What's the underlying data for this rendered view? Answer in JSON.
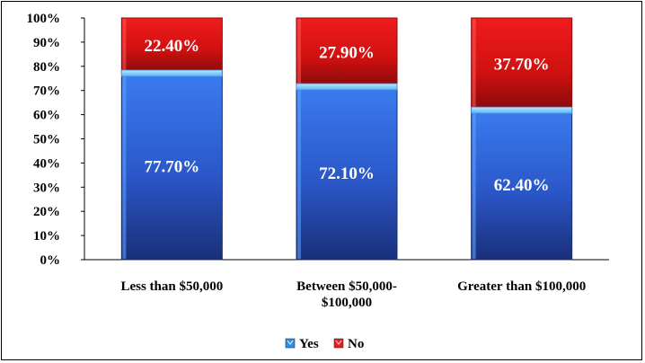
{
  "chart_data": {
    "type": "bar",
    "stacked": true,
    "categories": [
      [
        "Less than $50,000"
      ],
      [
        "Between $50,000-",
        "$100,000"
      ],
      [
        "Greater than $100,000"
      ]
    ],
    "series": [
      {
        "name": "Yes",
        "values": [
          77.7,
          72.1,
          62.4
        ],
        "labels": [
          "77.70%",
          "72.10%",
          "62.40%"
        ],
        "color": "#2f6fe0"
      },
      {
        "name": "No",
        "values": [
          22.4,
          27.9,
          37.7
        ],
        "labels": [
          "22.40%",
          "27.90%",
          "37.70%"
        ],
        "color": "#e41d1d"
      }
    ],
    "ylim": [
      0,
      100
    ],
    "yticks": [
      "0%",
      "10%",
      "20%",
      "30%",
      "40%",
      "50%",
      "60%",
      "70%",
      "80%",
      "90%",
      "100%"
    ],
    "grid": false,
    "legend": "bottom"
  }
}
